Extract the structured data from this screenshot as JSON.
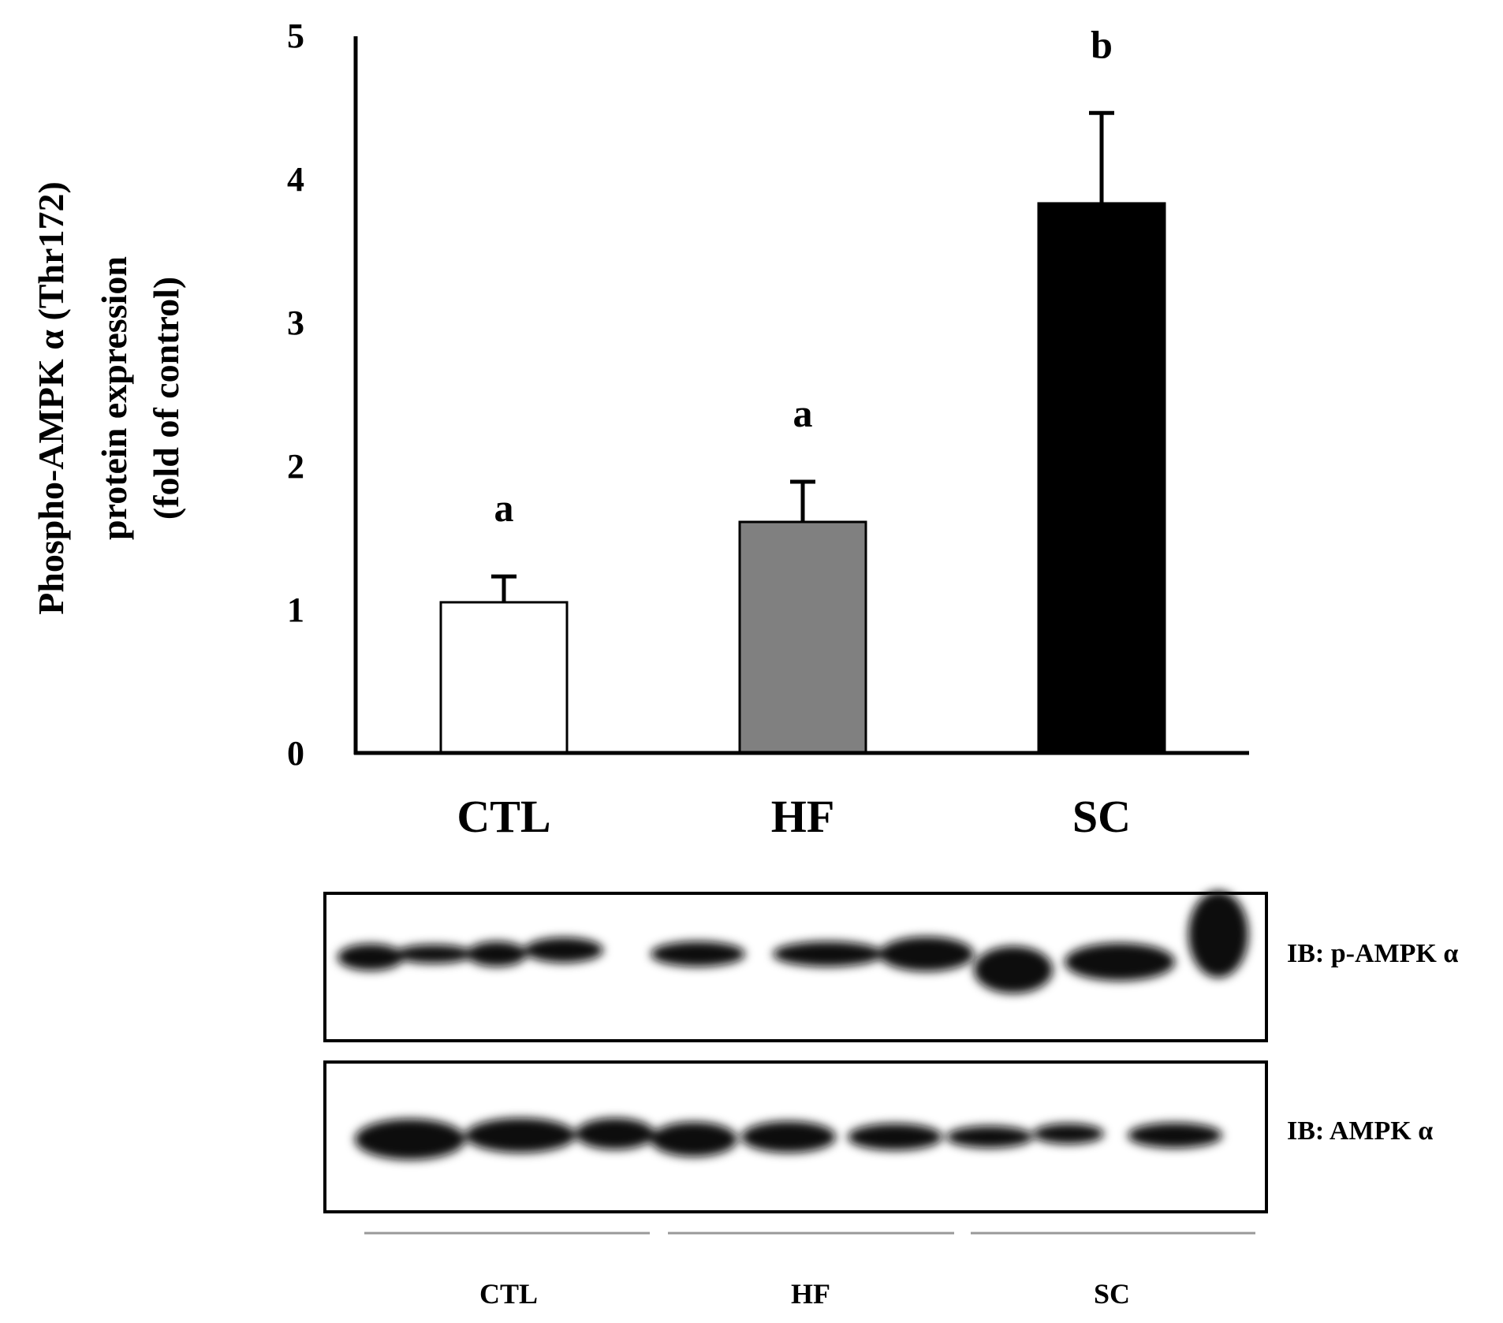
{
  "chart_data": {
    "type": "bar",
    "title": "",
    "xlabel": "",
    "ylabel_lines": [
      "Phospho-AMPK α (Thr172)",
      "protein expression",
      "(fold of control)"
    ],
    "categories": [
      "CTL",
      "HF",
      "SC"
    ],
    "values": [
      1.05,
      1.61,
      3.83
    ],
    "errors": [
      0.18,
      0.28,
      0.63
    ],
    "significance": [
      "a",
      "a",
      "b"
    ],
    "bar_colors": [
      "#ffffff",
      "#808080",
      "#000000"
    ],
    "ylim": [
      0,
      5
    ],
    "yticks": [
      0,
      1,
      2,
      3,
      4,
      5
    ],
    "grid": false,
    "legend": "none"
  },
  "blot": {
    "rows": [
      {
        "label": "IB: p-AMPK α"
      },
      {
        "label": "IB: AMPK α"
      }
    ],
    "groups": [
      "CTL",
      "HF",
      "SC"
    ]
  }
}
